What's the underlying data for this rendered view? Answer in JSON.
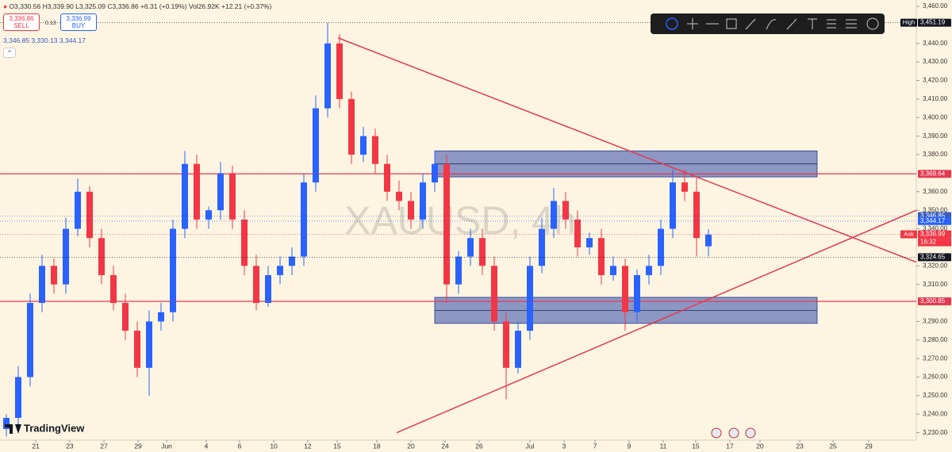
{
  "chart_data": {
    "type": "candlestick",
    "title": "XAUUSD, 4h",
    "header": {
      "ohlc": "O3,330.56 H3,339.90 L3,325.09 C3,336.86 +6.31 (+0.19%) Vol26.92K +12.21 (+0.37%)",
      "sell_price": "3,336.86",
      "sell": "SELL",
      "spread": "0.13",
      "buy_price": "3,336.99",
      "buy": "BUY",
      "indicators": "3,346.85 3,330.13 3,344.17"
    },
    "logo": "TradingView",
    "up_color": "#2962ff",
    "down_color": "#f23645",
    "open": [
      3232,
      3238,
      3260,
      3300,
      3320,
      3310,
      3340,
      3360,
      3335,
      3315,
      3300,
      3285,
      3265,
      3290,
      3295,
      3340,
      3375,
      3345,
      3350,
      3370,
      3345,
      3320,
      3300,
      3315,
      3320,
      3325,
      3365,
      3405,
      3440,
      3410,
      3380,
      3390,
      3375,
      3360,
      3355,
      3345,
      3365,
      3375,
      3310,
      3325,
      3335,
      3320,
      3290,
      3265,
      3285,
      3320,
      3340,
      3355,
      3345,
      3330,
      3335,
      3315,
      3320,
      3295,
      3315,
      3320,
      3340,
      3365,
      3360,
      3330.56
    ],
    "high": [
      3240,
      3266,
      3305,
      3326,
      3324,
      3346,
      3367,
      3363,
      3340,
      3320,
      3305,
      3290,
      3296,
      3300,
      3345,
      3382,
      3380,
      3352,
      3376,
      3374,
      3350,
      3326,
      3320,
      3325,
      3330,
      3370,
      3412,
      3451,
      3445,
      3414,
      3395,
      3394,
      3380,
      3366,
      3360,
      3370,
      3382,
      3380,
      3328,
      3340,
      3340,
      3325,
      3295,
      3290,
      3325,
      3346,
      3362,
      3360,
      3350,
      3338,
      3340,
      3325,
      3324,
      3318,
      3326,
      3345,
      3372,
      3372,
      3368,
      3339.9
    ],
    "low": [
      3228,
      3232,
      3255,
      3295,
      3305,
      3305,
      3336,
      3330,
      3310,
      3296,
      3280,
      3260,
      3250,
      3285,
      3290,
      3335,
      3340,
      3340,
      3345,
      3340,
      3315,
      3296,
      3298,
      3310,
      3315,
      3320,
      3360,
      3400,
      3405,
      3375,
      3376,
      3370,
      3355,
      3350,
      3340,
      3340,
      3360,
      3300,
      3305,
      3320,
      3315,
      3285,
      3248,
      3262,
      3280,
      3316,
      3335,
      3340,
      3325,
      3326,
      3310,
      3312,
      3285,
      3290,
      3310,
      3315,
      3335,
      3355,
      3325,
      3325.09
    ],
    "close": [
      3238,
      3260,
      3300,
      3320,
      3310,
      3340,
      3360,
      3335,
      3315,
      3300,
      3285,
      3265,
      3290,
      3295,
      3340,
      3375,
      3345,
      3350,
      3370,
      3345,
      3320,
      3300,
      3315,
      3320,
      3325,
      3365,
      3405,
      3440,
      3410,
      3380,
      3390,
      3375,
      3360,
      3355,
      3345,
      3365,
      3375,
      3310,
      3325,
      3335,
      3320,
      3290,
      3265,
      3285,
      3320,
      3340,
      3355,
      3345,
      3330,
      3335,
      3315,
      3320,
      3295,
      3315,
      3320,
      3340,
      3365,
      3360,
      3335,
      3336.86
    ],
    "xlim": [
      -0.5333,
      76.4667
    ],
    "ylim": [
      3226,
      3463
    ],
    "xticks": [
      {
        "value": 2.47,
        "label": "21"
      },
      {
        "value": 5.33,
        "label": "23"
      },
      {
        "value": 8.2,
        "label": "27"
      },
      {
        "value": 11.07,
        "label": "29"
      },
      {
        "value": 13.47,
        "label": "Jun"
      },
      {
        "value": 16.8,
        "label": "4"
      },
      {
        "value": 19.6,
        "label": "6"
      },
      {
        "value": 22.47,
        "label": "10"
      },
      {
        "value": 25.33,
        "label": "12"
      },
      {
        "value": 27.8,
        "label": "15"
      },
      {
        "value": 31.13,
        "label": "18"
      },
      {
        "value": 34,
        "label": "20"
      },
      {
        "value": 36.87,
        "label": "24"
      },
      {
        "value": 39.73,
        "label": "26"
      },
      {
        "value": 44,
        "label": "Jul"
      },
      {
        "value": 46.87,
        "label": "3"
      },
      {
        "value": 49.47,
        "label": "7"
      },
      {
        "value": 52.33,
        "label": "9"
      },
      {
        "value": 55.2,
        "label": "11"
      },
      {
        "value": 57.93,
        "label": "15"
      },
      {
        "value": 60.8,
        "label": "17"
      },
      {
        "value": 63.33,
        "label": "20"
      },
      {
        "value": 66.67,
        "label": "23"
      },
      {
        "value": 69.47,
        "label": "25"
      },
      {
        "value": 72.47,
        "label": "29"
      }
    ],
    "yticks": [
      {
        "value": 3230,
        "label": "3,230.00"
      },
      {
        "value": 3240,
        "label": "3,240.00"
      },
      {
        "value": 3250,
        "label": "3,250.00"
      },
      {
        "value": 3260,
        "label": "3,260.00"
      },
      {
        "value": 3270,
        "label": "3,270.00"
      },
      {
        "value": 3280,
        "label": "3,280.00"
      },
      {
        "value": 3290,
        "label": "3,290.00"
      },
      {
        "value": 3310,
        "label": "3,310.00"
      },
      {
        "value": 3320,
        "label": "3,320.00"
      },
      {
        "value": 3340,
        "label": "3,340.00"
      },
      {
        "value": 3350,
        "label": "3,350.00"
      },
      {
        "value": 3360,
        "label": "3,360.00"
      },
      {
        "value": 3380,
        "label": "3,380.00"
      },
      {
        "value": 3390,
        "label": "3,390.00"
      },
      {
        "value": 3400,
        "label": "3,400.00"
      },
      {
        "value": 3410,
        "label": "3,410.00"
      },
      {
        "value": 3420,
        "label": "3,420.00"
      },
      {
        "value": 3430,
        "label": "3,430.00"
      },
      {
        "value": 3440,
        "label": "3,440.00"
      },
      {
        "value": 3460,
        "label": "3,460.00"
      }
    ],
    "trendlines": [
      {
        "x": [
          27.87,
          76.47
        ],
        "y": [
          3443,
          3322
        ],
        "color": "#e53950"
      },
      {
        "x": [
          32.8,
          76.47
        ],
        "y": [
          3230,
          3350
        ],
        "color": "#e53950"
      }
    ],
    "hlines": [
      {
        "value": 3369.64,
        "color": "#e53950"
      },
      {
        "value": 3300.85,
        "color": "#e53950"
      }
    ],
    "zones": [
      {
        "x": [
          36.0,
          68.13
        ],
        "y": [
          3368,
          3382
        ],
        "color": "#5b6fb8"
      },
      {
        "x": [
          36.0,
          68.13
        ],
        "y": [
          3289,
          3303
        ],
        "color": "#5b6fb8"
      }
    ],
    "price_labels": [
      {
        "value": 3451.19,
        "label": "3,451.19",
        "color": "#131722",
        "tag": "High"
      },
      {
        "value": 3369.64,
        "label": "3,369.64",
        "color": "#e53950"
      },
      {
        "value": 3346.85,
        "label": "3,346.85",
        "color": "#3a5bbd"
      },
      {
        "value": 3344.17,
        "label": "3,344.17",
        "color": "#2962ff"
      },
      {
        "value": 3336.99,
        "label": "3,336.99",
        "color": "#f23645",
        "tag": "Ask"
      },
      {
        "value": 3324.65,
        "label": "3,324.65",
        "color": "#131722"
      },
      {
        "value": 3300.85,
        "label": "3,300.85",
        "color": "#e53950"
      }
    ],
    "countdown": "16:32"
  }
}
